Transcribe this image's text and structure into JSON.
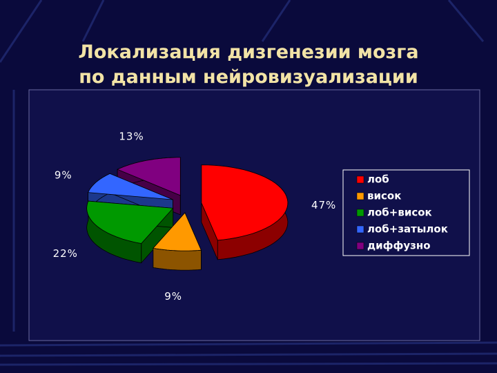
{
  "chart_data": {
    "type": "pie",
    "title": "Локализация дизгенезии мозга по данным нейровизуализации",
    "categories": [
      "лоб",
      "висок",
      "лоб+висок",
      "лоб+затылок",
      "диффузно"
    ],
    "values": [
      47,
      9,
      22,
      9,
      13
    ],
    "value_labels": [
      "47%",
      "9%",
      "22%",
      "9%",
      "13%"
    ],
    "colors": [
      "#ff0000",
      "#ff9900",
      "#009900",
      "#3366ff",
      "#800080"
    ],
    "legend": "right"
  }
}
